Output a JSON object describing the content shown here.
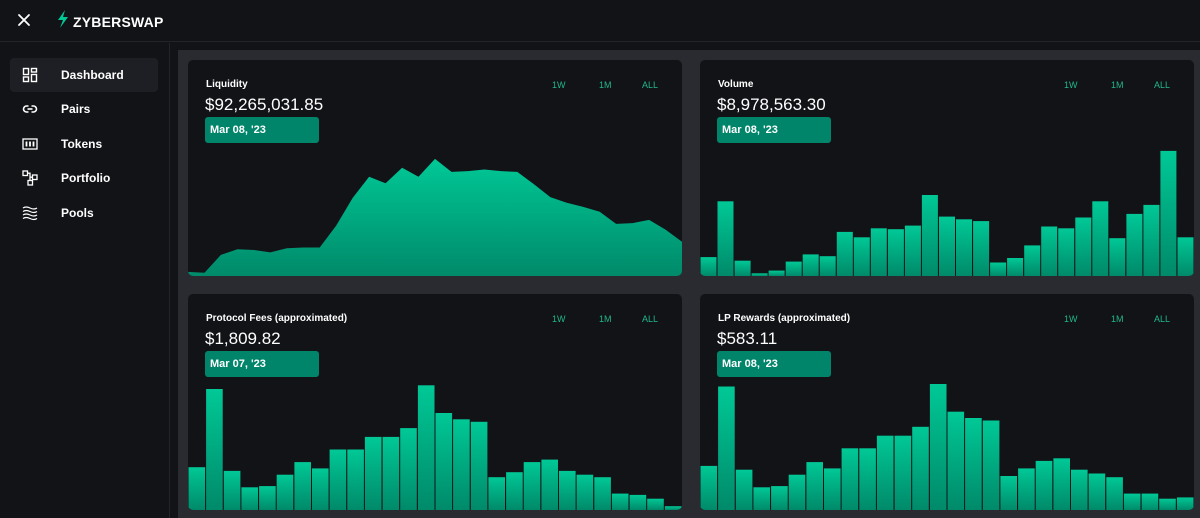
{
  "app": {
    "name": "ZYBERSWAP",
    "accent": "#00c896"
  },
  "topbar": {
    "close_icon": "close-icon",
    "logo_icon": "lightning-bolt-icon"
  },
  "sidebar": {
    "items": [
      {
        "label": "Dashboard",
        "icon": "dashboard-grid-icon",
        "active": true
      },
      {
        "label": "Pairs",
        "icon": "link-icon",
        "active": false
      },
      {
        "label": "Tokens",
        "icon": "tokens-icon",
        "active": false
      },
      {
        "label": "Portfolio",
        "icon": "portfolio-icon",
        "active": false
      },
      {
        "label": "Pools",
        "icon": "waves-icon",
        "active": false
      }
    ]
  },
  "range_options": [
    "1W",
    "1M",
    "ALL"
  ],
  "cards": [
    {
      "title": "Liquidity",
      "value": "$92,265,031.85",
      "date": "Mar 08, '23"
    },
    {
      "title": "Volume",
      "value": "$8,978,563.30",
      "date": "Mar 08, '23"
    },
    {
      "title": "Protocol Fees (approximated)",
      "value": "$1,809.82",
      "date": "Mar 07, '23"
    },
    {
      "title": "LP Rewards (approximated)",
      "value": "$583.11",
      "date": "Mar 08, '23"
    }
  ],
  "chart_data": [
    {
      "type": "area",
      "series": [
        {
          "values": [
            0.5,
            0.4,
            2.6,
            3.3,
            3.2,
            2.9,
            3.4,
            3.5,
            3.5,
            6.2,
            9.6,
            12.2,
            11.4,
            13.3,
            12.2,
            14.4,
            12.8,
            12.9,
            13.1,
            12.9,
            12.8,
            11.3,
            9.7,
            9.0,
            8.5,
            7.9,
            6.4,
            6.5,
            6.9,
            5.7,
            4.2
          ]
        }
      ]
    },
    {
      "type": "bar",
      "series": [
        {
          "values": [
            2.1,
            8.3,
            1.7,
            0.3,
            0.6,
            1.6,
            2.4,
            2.2,
            4.9,
            4.3,
            5.3,
            5.2,
            5.6,
            9.0,
            6.6,
            6.3,
            6.1,
            1.5,
            2.0,
            3.4,
            5.5,
            5.3,
            6.5,
            8.3,
            4.2,
            6.9,
            7.9,
            13.9,
            4.3
          ]
        }
      ]
    },
    {
      "type": "bar",
      "series": [
        {
          "values": [
            3.4,
            9.6,
            3.1,
            1.8,
            1.9,
            2.8,
            3.8,
            3.3,
            4.8,
            4.8,
            5.8,
            5.8,
            6.5,
            9.9,
            7.7,
            7.2,
            7.0,
            2.6,
            3.0,
            3.8,
            4.0,
            3.1,
            2.8,
            2.6,
            1.3,
            1.2,
            0.9,
            0.3
          ]
        }
      ]
    },
    {
      "type": "bar",
      "series": [
        {
          "values": [
            3.5,
            9.8,
            3.2,
            1.8,
            1.9,
            2.8,
            3.8,
            3.3,
            4.9,
            4.9,
            5.9,
            5.9,
            6.6,
            10.0,
            7.8,
            7.3,
            7.1,
            2.7,
            3.3,
            3.9,
            4.1,
            3.2,
            2.9,
            2.6,
            1.3,
            1.3,
            0.9,
            1.0
          ]
        }
      ]
    }
  ]
}
